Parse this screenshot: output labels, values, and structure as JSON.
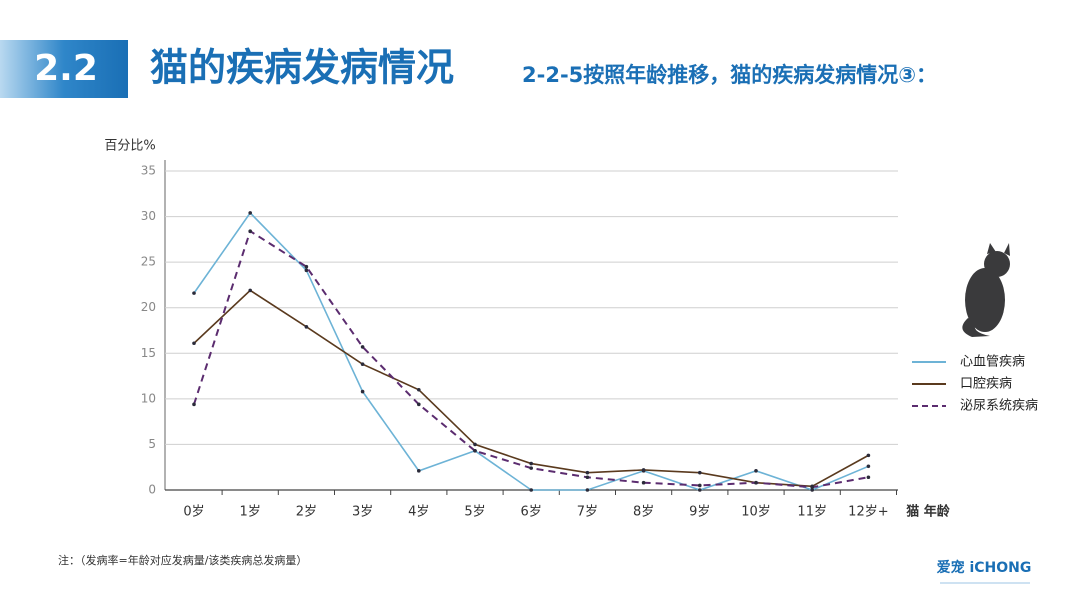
{
  "header": {
    "section": "2.2",
    "title": "猫的疾病发病情况",
    "subtitle": "2-2-5按照年龄推移，猫的疾病发病情况③："
  },
  "chart_data": {
    "type": "line",
    "y_label": "百分比%",
    "x_label": "猫 年龄",
    "categories": [
      "0岁",
      "1岁",
      "2岁",
      "3岁",
      "4岁",
      "5岁",
      "6岁",
      "7岁",
      "8岁",
      "9岁",
      "10岁",
      "11岁",
      "12岁+"
    ],
    "series": [
      {
        "name": "心血管疾病",
        "color": "#6db3d6",
        "dashed": false,
        "values": [
          21.6,
          30.4,
          24.1,
          10.8,
          2.1,
          4.3,
          0,
          0,
          2.1,
          0,
          2.1,
          0,
          2.6
        ]
      },
      {
        "name": "口腔疾病",
        "color": "#5a3a1e",
        "dashed": false,
        "values": [
          16.1,
          21.9,
          17.9,
          13.8,
          11.0,
          5.0,
          2.9,
          1.9,
          2.2,
          1.9,
          0.8,
          0.4,
          3.8
        ]
      },
      {
        "name": "泌尿系统疾病",
        "color": "#5b2c6f",
        "dashed": true,
        "values": [
          9.4,
          28.4,
          24.5,
          15.7,
          9.4,
          4.3,
          2.4,
          1.4,
          0.8,
          0.5,
          0.8,
          0.3,
          1.4
        ]
      }
    ],
    "ylim": [
      0,
      35
    ],
    "yticks": [
      0,
      5,
      10,
      15,
      20,
      25,
      30,
      35
    ],
    "grid": true,
    "legend_position": "right"
  },
  "note": "注：（发病率=年龄对应发病量/该类疾病总发病量）",
  "logo": "爱宠 iCHONG"
}
